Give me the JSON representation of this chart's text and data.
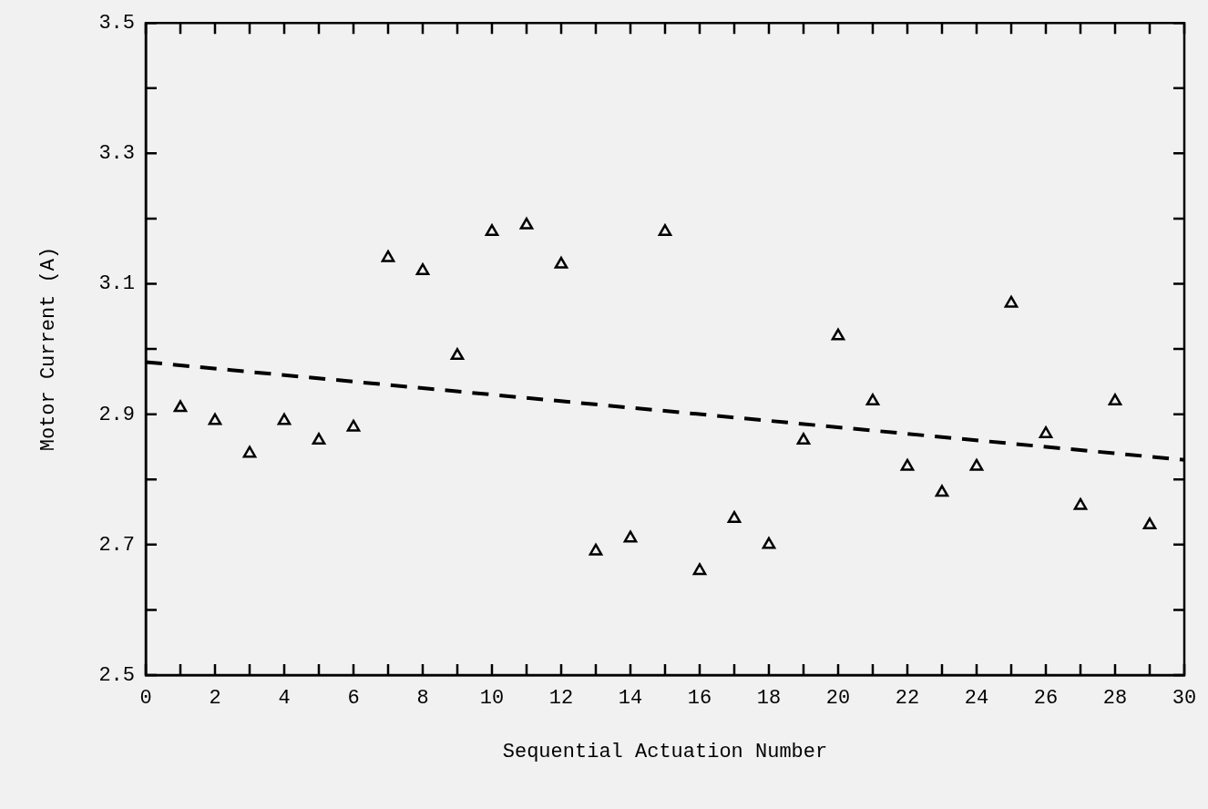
{
  "chart_data": {
    "type": "scatter",
    "xlabel": "Sequential Actuation Number",
    "ylabel": "Motor Current (A)",
    "xlim": [
      0,
      30
    ],
    "ylim": [
      2.5,
      3.5
    ],
    "xticks": [
      0,
      {
        "value": 1,
        "label": null
      },
      2,
      {
        "value": 3,
        "label": null
      },
      4,
      {
        "value": 5,
        "label": null
      },
      6,
      {
        "value": 7,
        "label": null
      },
      8,
      {
        "value": 9,
        "label": null
      },
      10,
      {
        "value": 11,
        "label": null
      },
      12,
      {
        "value": 13,
        "label": null
      },
      14,
      {
        "value": 15,
        "label": null
      },
      16,
      {
        "value": 17,
        "label": null
      },
      18,
      {
        "value": 19,
        "label": null
      },
      20,
      {
        "value": 21,
        "label": null
      },
      22,
      {
        "value": 23,
        "label": null
      },
      24,
      {
        "value": 25,
        "label": null
      },
      26,
      {
        "value": 27,
        "label": null
      },
      28,
      {
        "value": 29,
        "label": null
      },
      30
    ],
    "yticks": [
      2.5,
      {
        "value": 2.6,
        "label": null
      },
      2.7,
      {
        "value": 2.8,
        "label": null
      },
      2.9,
      {
        "value": 3.0,
        "label": null
      },
      3.1,
      {
        "value": 3.2,
        "label": null
      },
      3.3,
      {
        "value": 3.4,
        "label": null
      },
      3.5
    ],
    "grid": false,
    "legend": false,
    "marker": "triangle",
    "series": [
      {
        "type": "scatter",
        "color": "#000000",
        "x": [
          1,
          2,
          3,
          4,
          5,
          6,
          7,
          8,
          9,
          10,
          11,
          12,
          13,
          14,
          15,
          16,
          17,
          18,
          19,
          20,
          21,
          22,
          23,
          24,
          25,
          26,
          27,
          28,
          29
        ],
        "values": [
          2.91,
          2.89,
          2.84,
          2.89,
          2.86,
          2.88,
          3.14,
          3.12,
          2.99,
          3.18,
          3.19,
          3.13,
          2.69,
          2.71,
          3.18,
          2.66,
          2.74,
          2.7,
          2.86,
          3.02,
          2.92,
          2.82,
          2.78,
          2.82,
          3.07,
          2.87,
          2.76,
          2.92,
          2.73
        ]
      },
      {
        "type": "line",
        "color": "#000000",
        "x": [
          0,
          30
        ],
        "values": [
          2.98,
          2.83
        ],
        "line_style": "dashed",
        "marker": "none"
      }
    ]
  }
}
